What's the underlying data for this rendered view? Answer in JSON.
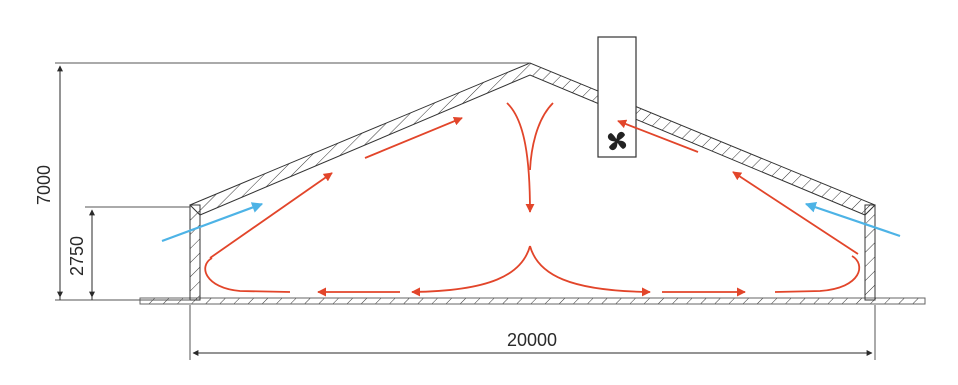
{
  "dimensions": {
    "total_height": "7000",
    "wall_height": "2750",
    "width": "20000"
  },
  "elements": {
    "fan_icon": "fan-icon",
    "fresh_air_color": "#4db3e6",
    "airflow_color": "#e2452a"
  }
}
